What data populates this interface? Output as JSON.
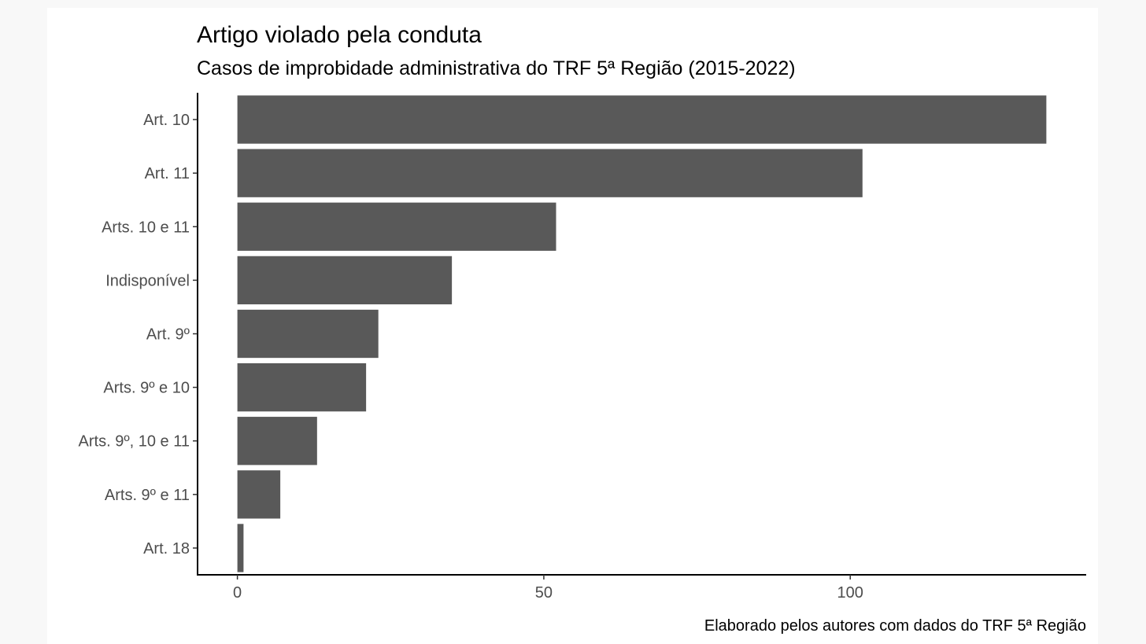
{
  "chart_data": {
    "type": "bar",
    "orientation": "horizontal",
    "title": "Artigo violado pela conduta",
    "subtitle": "Casos de improbidade administrativa do TRF 5ª Região (2015-2022)",
    "caption": "Elaborado pelos autores com dados do TRF 5ª Região",
    "categories": [
      "Art. 10",
      "Art. 11",
      "Arts. 10 e 11",
      "Indisponível",
      "Art. 9º",
      "Arts. 9º e 10",
      "Arts. 9º, 10 e 11",
      "Arts. 9º e 11",
      "Art. 18"
    ],
    "values": [
      132,
      102,
      52,
      35,
      23,
      21,
      13,
      7,
      1
    ],
    "xlim": [
      -6.5,
      138.5
    ],
    "xticks": [
      0,
      50,
      100
    ],
    "xlabel": "",
    "ylabel": "",
    "bar_color": "#595959",
    "grid": false,
    "legend": "none"
  }
}
